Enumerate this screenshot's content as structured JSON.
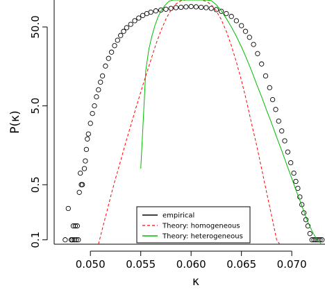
{
  "chart_data": {
    "type": "scatter",
    "title": "",
    "xlabel": "κ",
    "ylabel": "P(κ)",
    "xlim": [
      0.0464,
      0.0733
    ],
    "ylim": [
      0.088,
      110
    ],
    "yscale": "log",
    "grid": false,
    "xticks": [
      0.05,
      0.055,
      0.06,
      0.065,
      0.07
    ],
    "xtick_labels": [
      "0.050",
      "0.055",
      "0.060",
      "0.065",
      "0.070"
    ],
    "yticks": [
      0.1,
      0.5,
      5.0,
      50.0
    ],
    "ytick_labels": [
      "0.1",
      "0.5",
      "5.0",
      "50.0"
    ],
    "legend": {
      "placement": "bottom-center",
      "entries": [
        {
          "label": "empirical",
          "color": "#000000",
          "style": "solid"
        },
        {
          "label": "Theory: homogeneous",
          "color": "#ff0000",
          "style": "dashed"
        },
        {
          "label": "Theory: heterogeneous",
          "color": "#00bb00",
          "style": "solid"
        }
      ]
    },
    "series": [
      {
        "kind": "points",
        "marker": "open-circle",
        "color": "#000000",
        "x": [
          0.0475,
          0.0478,
          0.0481,
          0.0482,
          0.0483,
          0.0484,
          0.0485,
          0.0486,
          0.0487,
          0.0488,
          0.0489,
          0.049,
          0.0491,
          0.0492,
          0.0494,
          0.0495,
          0.0496,
          0.0497,
          0.0498,
          0.05,
          0.0502,
          0.0504,
          0.0506,
          0.0508,
          0.051,
          0.0512,
          0.0515,
          0.0518,
          0.0521,
          0.0524,
          0.0527,
          0.053,
          0.0533,
          0.0536,
          0.054,
          0.0544,
          0.0548,
          0.0552,
          0.0556,
          0.056,
          0.0565,
          0.057,
          0.0575,
          0.058,
          0.0585,
          0.059,
          0.0595,
          0.06,
          0.0605,
          0.061,
          0.0615,
          0.062,
          0.0625,
          0.063,
          0.0635,
          0.064,
          0.0645,
          0.065,
          0.0654,
          0.0658,
          0.0662,
          0.0666,
          0.067,
          0.0674,
          0.0678,
          0.0681,
          0.0684,
          0.0687,
          0.069,
          0.0693,
          0.0696,
          0.0699,
          0.0702,
          0.0704,
          0.0706,
          0.0708,
          0.071,
          0.0712,
          0.0714,
          0.0716,
          0.0718,
          0.072,
          0.0722,
          0.0724,
          0.0726,
          0.0728,
          0.073
        ],
        "y": [
          0.1,
          0.25,
          0.1,
          0.1,
          0.15,
          0.1,
          0.15,
          0.1,
          0.15,
          0.1,
          0.4,
          0.7,
          0.5,
          0.5,
          0.8,
          1.0,
          1.4,
          1.9,
          2.2,
          3.0,
          4.0,
          5.0,
          6.5,
          8.0,
          10.0,
          12.0,
          16.0,
          20.0,
          24.0,
          29.0,
          34.0,
          39.0,
          44.0,
          49.0,
          54.0,
          60.0,
          65.0,
          70.0,
          74.0,
          77.0,
          80.0,
          82.0,
          84.0,
          86.0,
          88.0,
          89.0,
          90.0,
          91.0,
          90.0,
          89.0,
          88.0,
          86.0,
          83.0,
          79.0,
          74.0,
          68.0,
          60.0,
          52.0,
          44.0,
          37.0,
          30.0,
          23.0,
          17.0,
          12.0,
          8.5,
          6.0,
          4.5,
          3.2,
          2.4,
          1.8,
          1.3,
          0.95,
          0.7,
          0.55,
          0.45,
          0.35,
          0.28,
          0.22,
          0.18,
          0.15,
          0.12,
          0.1,
          0.1,
          0.1,
          0.1,
          0.1,
          0.1
        ]
      },
      {
        "kind": "line",
        "name": "Theory: homogeneous",
        "color": "#ff0000",
        "style": "dashed",
        "x": [
          0.0508,
          0.0512,
          0.0516,
          0.052,
          0.0525,
          0.053,
          0.0535,
          0.054,
          0.0545,
          0.055,
          0.0555,
          0.056,
          0.0565,
          0.057,
          0.0575,
          0.058,
          0.0585,
          0.059,
          0.0595,
          0.06,
          0.0605,
          0.061,
          0.0615,
          0.062,
          0.0625,
          0.063,
          0.0635,
          0.064,
          0.0645,
          0.065,
          0.0655,
          0.066,
          0.0665,
          0.067,
          0.0675,
          0.068,
          0.0685,
          0.0688
        ],
        "y": [
          0.088,
          0.14,
          0.22,
          0.35,
          0.6,
          1.0,
          1.7,
          2.8,
          4.6,
          7.5,
          12.0,
          19.0,
          30.0,
          45.0,
          63.0,
          82.0,
          98.0,
          108.0,
          110.0,
          110.0,
          110.0,
          110.0,
          106.0,
          96.0,
          80.0,
          62.0,
          44.0,
          29.0,
          18.0,
          10.5,
          5.8,
          3.0,
          1.6,
          0.8,
          0.4,
          0.2,
          0.1,
          0.088
        ]
      },
      {
        "kind": "line",
        "name": "Theory: heterogeneous",
        "color": "#00bb00",
        "style": "solid",
        "x": [
          0.055,
          0.0552,
          0.0555,
          0.0558,
          0.0561,
          0.0564,
          0.0567,
          0.057,
          0.0574,
          0.0578,
          0.0582,
          0.0586,
          0.059,
          0.0595,
          0.06,
          0.0605,
          0.061,
          0.0615,
          0.062,
          0.0625,
          0.063,
          0.0635,
          0.064,
          0.0645,
          0.065,
          0.0655,
          0.066,
          0.0665,
          0.067,
          0.0675,
          0.068,
          0.0685,
          0.069,
          0.0695,
          0.07,
          0.0705,
          0.071,
          0.0715,
          0.072,
          0.0725,
          0.0729
        ],
        "y": [
          0.8,
          2.5,
          14.0,
          26.0,
          38.0,
          52.0,
          66.0,
          80.0,
          94.0,
          106.0,
          110.0,
          110.0,
          110.0,
          110.0,
          110.0,
          110.0,
          110.0,
          110.0,
          108.0,
          96.0,
          80.0,
          64.0,
          50.0,
          38.0,
          28.0,
          20.0,
          14.0,
          9.5,
          6.5,
          4.4,
          3.0,
          2.0,
          1.35,
          0.9,
          0.6,
          0.4,
          0.27,
          0.18,
          0.13,
          0.1,
          0.09
        ]
      }
    ]
  }
}
